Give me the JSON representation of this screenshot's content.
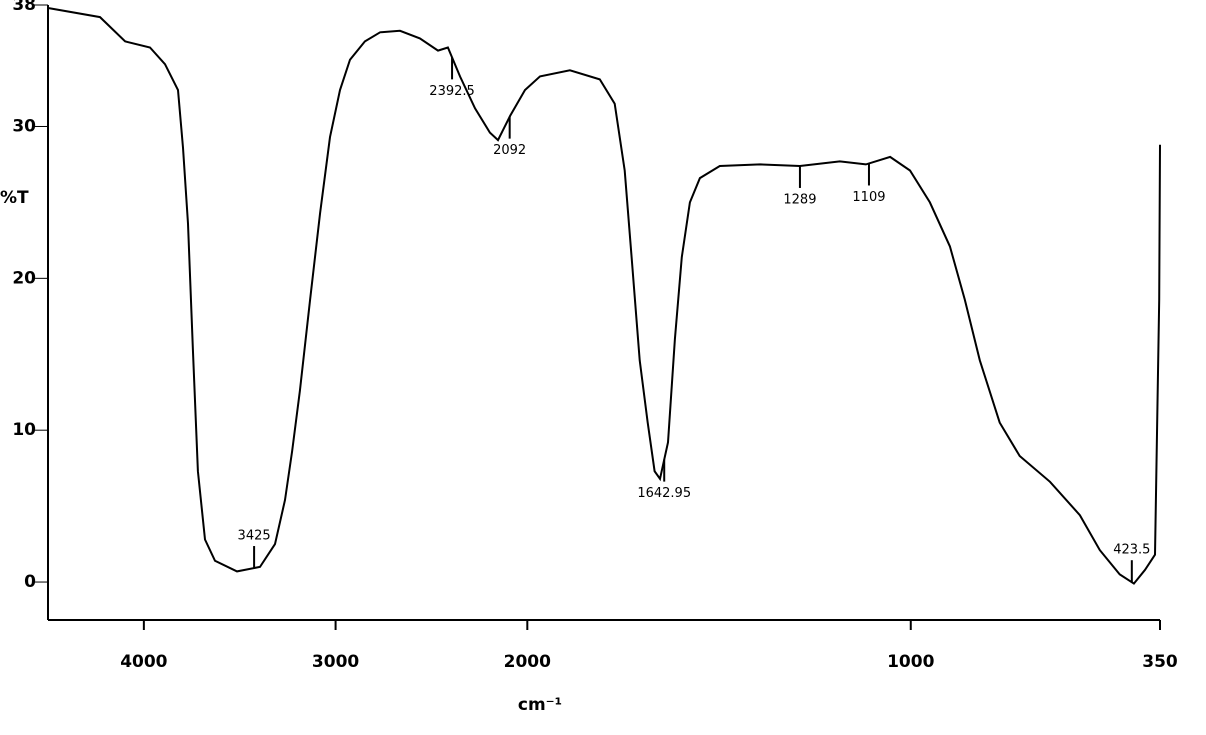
{
  "chart_data": {
    "type": "line",
    "y_label": "%T",
    "x_label": "cm⁻¹",
    "color": "#000000",
    "xlim": [
      4500,
      350
    ],
    "x_scale_break": 2000,
    "ylim": [
      -2.5,
      38
    ],
    "xticks": [
      4000,
      3000,
      2000,
      1000,
      350
    ],
    "yticks": [
      0,
      10,
      20,
      30,
      38
    ],
    "x": [
      4500,
      4229,
      4098,
      3968,
      3890,
      3822,
      3796,
      3770,
      3744,
      3718,
      3681,
      3629,
      3514,
      3394,
      3316,
      3264,
      3227,
      3186,
      3133,
      3081,
      3029,
      2977,
      2925,
      2847,
      2768,
      2664,
      2560,
      2466,
      2414,
      2351,
      2273,
      2195,
      2153,
      2090,
      2012,
      1967,
      1889,
      1811,
      1772,
      1746,
      1728,
      1707,
      1686,
      1668,
      1654,
      1633,
      1615,
      1597,
      1576,
      1550,
      1498,
      1393,
      1289,
      1185,
      1117,
      1054,
      1002,
      950,
      898,
      859,
      820,
      768,
      716,
      637,
      559,
      507,
      455,
      418,
      389,
      363,
      352,
      350
    ],
    "values": [
      37.8,
      37.2,
      35.6,
      35.2,
      34.1,
      32.4,
      28.6,
      23.6,
      15.3,
      7.3,
      2.8,
      1.4,
      0.7,
      1.0,
      2.5,
      5.4,
      8.6,
      12.6,
      18.6,
      24.3,
      29.3,
      32.4,
      34.4,
      35.6,
      36.2,
      36.3,
      35.8,
      35.0,
      35.2,
      33.3,
      31.2,
      29.6,
      29.1,
      30.7,
      32.4,
      33.3,
      33.7,
      33.1,
      31.5,
      27.1,
      21.4,
      14.6,
      10.5,
      7.3,
      6.8,
      9.2,
      16.0,
      21.4,
      25.0,
      26.6,
      27.4,
      27.5,
      27.4,
      27.7,
      27.5,
      28.0,
      27.1,
      25.0,
      22.1,
      18.6,
      14.6,
      10.5,
      8.3,
      6.6,
      4.4,
      2.1,
      0.5,
      -0.1,
      0.8,
      1.8,
      18.6,
      28.8
    ],
    "peak_labels": [
      3425,
      2392.5,
      2092,
      1642.95,
      1289,
      1109,
      423.5
    ]
  }
}
